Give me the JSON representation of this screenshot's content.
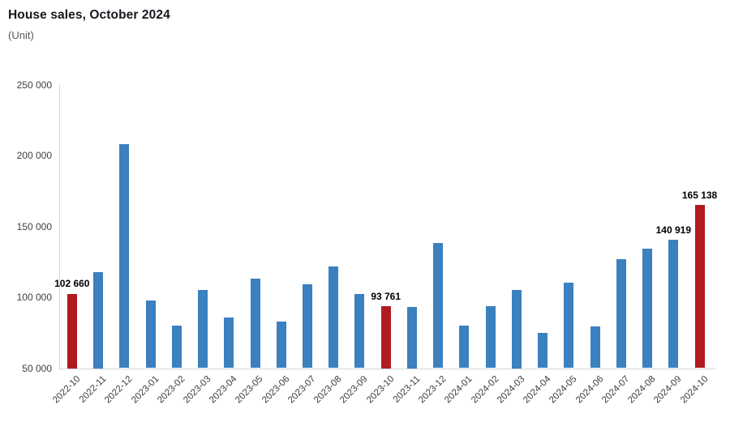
{
  "header": {
    "title": "House sales, October 2024",
    "subtitle": "(Unit)"
  },
  "chart_data": {
    "type": "bar",
    "title": "House sales, October 2024",
    "ylabel": "(Unit)",
    "xlabel": "",
    "categories": [
      "2022-10",
      "2022-11",
      "2022-12",
      "2023-01",
      "2023-02",
      "2023-03",
      "2023-04",
      "2023-05",
      "2023-06",
      "2023-07",
      "2023-08",
      "2023-09",
      "2023-10",
      "2023-11",
      "2023-12",
      "2024-01",
      "2024-02",
      "2024-03",
      "2024-04",
      "2024-05",
      "2024-06",
      "2024-07",
      "2024-08",
      "2024-09",
      "2024-10"
    ],
    "values": [
      102660,
      117800,
      208000,
      97700,
      80000,
      105300,
      85700,
      113200,
      83000,
      109300,
      121900,
      102300,
      93761,
      93200,
      138300,
      80100,
      93900,
      105200,
      75000,
      110200,
      79300,
      126900,
      134300,
      140919,
      165138
    ],
    "highlighted_indices": [
      0,
      12,
      24
    ],
    "point_labels": {
      "0": "102 660",
      "12": "93 761",
      "23": "140 919",
      "24": "165 138"
    },
    "ylim": [
      50000,
      250000
    ],
    "ytick_step": 50000,
    "ytick_labels": [
      "50 000",
      "100 000",
      "150 000",
      "200 000",
      "250 000"
    ],
    "grid": false,
    "legend_position": "none",
    "colors": {
      "bar": "#3b80bf",
      "highlight": "#b11b20",
      "axis": "#d6d6d6",
      "tick_text": "#404040",
      "point_label_text": "#000000"
    }
  }
}
